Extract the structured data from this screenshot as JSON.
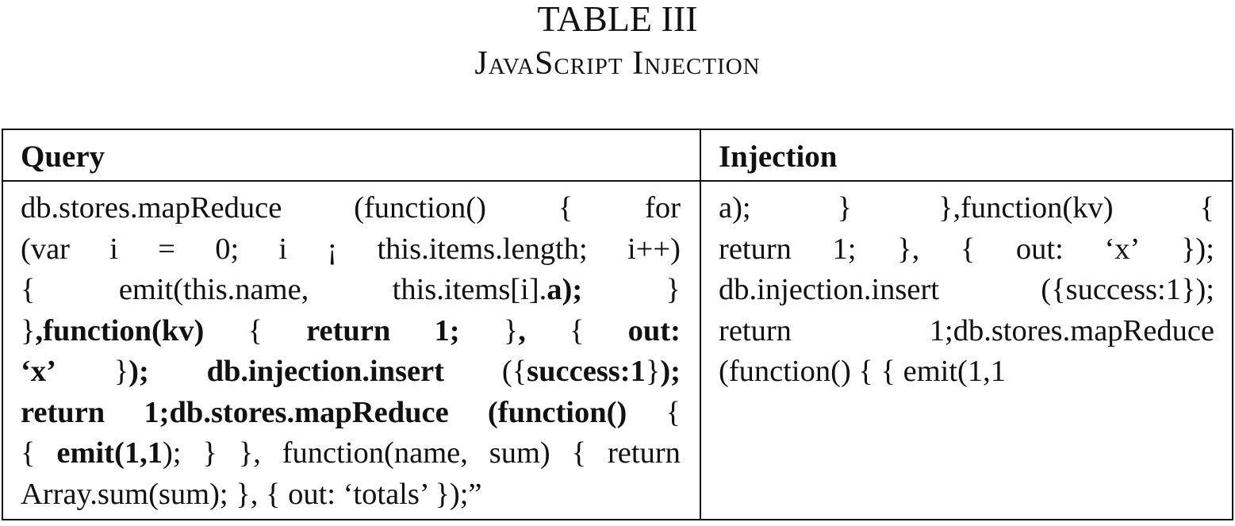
{
  "caption": {
    "table_number": "TABLE III",
    "title": "JavaScript Injection"
  },
  "table": {
    "headers": [
      "Query",
      "Injection"
    ],
    "query_cell": "db.stores.mapReduce (function() { for (var i = 0; i ¡ this.items.length; i++) { emit(this.name, this.items[i].a); } },function(kv) { return 1; }, { out: ‘x’ }); db.injection.insert ({success:1}); return 1;db.stores.mapReduce (function() { { emit(1,1); } }, function(name, sum) { return Array.sum(sum); }, { out: ‘totals’ });”",
    "injection_cell": "a); } },function(kv) { return 1; }, { out: ‘x’ }); db.injection.insert ({success:1}); return 1;db.stores.mapReduce (function() { { emit(1,1"
  }
}
